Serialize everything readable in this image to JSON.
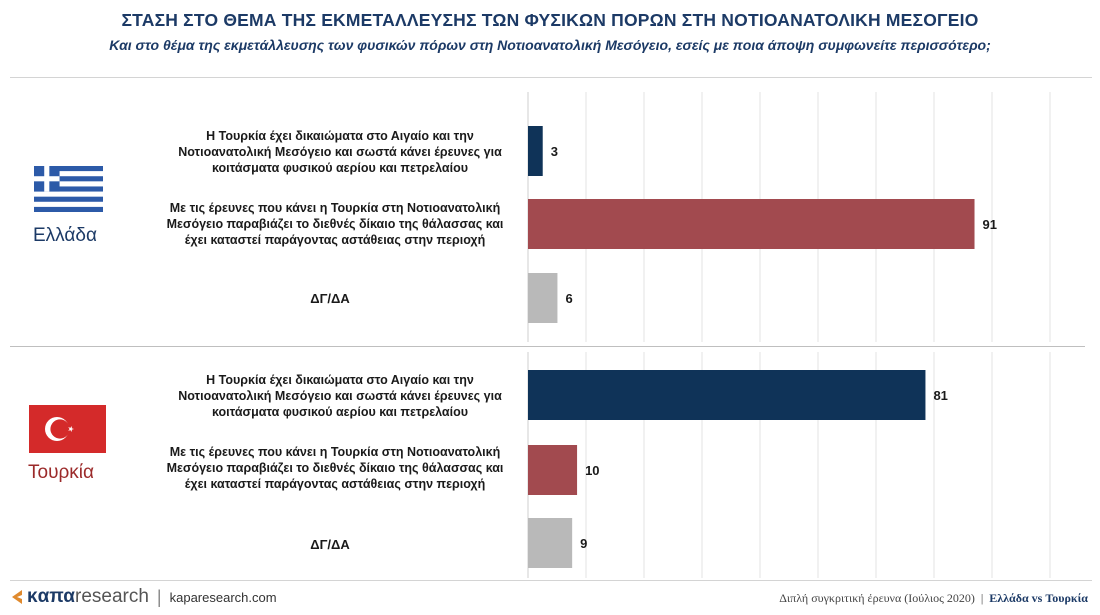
{
  "header": {
    "title": "ΣΤΑΣΗ ΣΤΟ ΘΕΜΑ ΤΗΣ ΕΚΜΕΤΑΛΛΕΥΣΗΣ ΤΩΝ ΦΥΣΙΚΩΝ ΠΟΡΩΝ ΣΤΗ ΝΟΤΙΟΑΝΑΤΟΛΙΚΗ ΜΕΣΟΓΕΙΟ",
    "subtitle": "Και στο θέμα της εκμετάλλευσης των φυσικών πόρων στη Νοτιοανατολική Μεσόγειο, εσείς με ποια άποψη συμφωνείτε περισσότερο;"
  },
  "colors": {
    "navy": "#0f3358",
    "red": "#a24a4f",
    "gray": "#b9b9b9"
  },
  "chart_data": [
    {
      "type": "bar",
      "orientation": "horizontal",
      "group": "Ελλάδα",
      "categories": [
        "Η Τουρκία έχει δικαιώματα στο Αιγαίο και την Νοτιοανατολική Μεσόγειο και σωστά κάνει έρευνες για κοιτάσματα φυσικού αερίου και πετρελαίου",
        "Με τις έρευνες που κάνει η Τουρκία στη Νοτιοανατολική Μεσόγειο παραβιάζει το διεθνές δίκαιο της θάλασσας και έχει καταστεί παράγοντας αστάθειας στην περιοχή",
        "ΔΓ/ΔΑ"
      ],
      "values": [
        3,
        91,
        6
      ],
      "colors": [
        "#0f3358",
        "#a24a4f",
        "#b9b9b9"
      ],
      "xlim": [
        0,
        100
      ],
      "grid": true
    },
    {
      "type": "bar",
      "orientation": "horizontal",
      "group": "Τουρκία",
      "categories": [
        "Η Τουρκία έχει δικαιώματα στο Αιγαίο και την Νοτιοανατολική Μεσόγειο και σωστά κάνει έρευνες για κοιτάσματα φυσικού αερίου και πετρελαίου",
        "Με τις έρευνες που κάνει η Τουρκία στη Νοτιοανατολική Μεσόγειο παραβιάζει το διεθνές δίκαιο της θάλασσας και έχει καταστεί παράγοντας αστάθειας στην περιοχή",
        "ΔΓ/ΔΑ"
      ],
      "values": [
        81,
        10,
        9
      ],
      "colors": [
        "#0f3358",
        "#a24a4f",
        "#b9b9b9"
      ],
      "xlim": [
        0,
        100
      ],
      "grid": true
    }
  ],
  "labels": {
    "greece": {
      "q1": [
        "Η Τουρκία έχει δικαιώματα στο Αιγαίο και την",
        "Νοτιοανατολική Μεσόγειο και σωστά κάνει έρευνες για",
        "κοιτάσματα φυσικού αερίου και πετρελαίου"
      ],
      "q2": [
        "Με τις έρευνες που κάνει η Τουρκία στη Νοτιοανατολική",
        "Μεσόγειο παραβιάζει το διεθνές δίκαιο της θάλασσας και",
        "έχει καταστεί παράγοντας αστάθειας στην περιοχή"
      ],
      "q3": "ΔΓ/ΔΑ"
    },
    "turkey": {
      "q1": [
        "Η Τουρκία έχει δικαιώματα στο Αιγαίο και την",
        "Νοτιοανατολική Μεσόγειο και σωστά κάνει έρευνες για",
        "κοιτάσματα φυσικού αερίου και πετρελαίου"
      ],
      "q2": [
        "Με τις έρευνες που κάνει η Τουρκία στη Νοτιοανατολική",
        "Μεσόγειο παραβιάζει το διεθνές δίκαιο της θάλασσας και",
        "έχει καταστεί παράγοντας αστάθειας στην περιοχή"
      ],
      "q3": "ΔΓ/ΔΑ"
    }
  },
  "groups": {
    "greece": "Ελλάδα",
    "turkey": "Τουρκία"
  },
  "flags": {
    "greece": "greece-flag-icon",
    "turkey": "turkey-flag-icon"
  },
  "footer": {
    "logo_k": "κ",
    "logo_apa": "απα",
    "logo_research": "research",
    "separator": "|",
    "site": "kaparesearch.com",
    "survey": "Διπλή συγκριτική έρευνα (Ιούλιος 2020)",
    "divider": "|",
    "comparison": "Ελλάδα vs Τουρκία"
  }
}
